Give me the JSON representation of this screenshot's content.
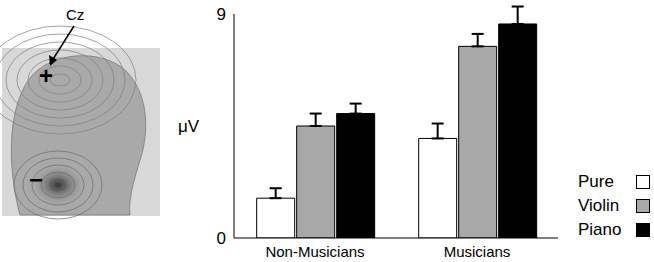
{
  "chart_data": {
    "type": "bar",
    "y_label": "μV",
    "categories": [
      "Non-Musicians",
      "Musicians"
    ],
    "ylim": [
      0,
      9
    ],
    "yticks": [
      0,
      9
    ],
    "legend": "lower right",
    "annotations": {
      "electrode": "Cz",
      "positive": "+",
      "negative": "−"
    },
    "series": [
      {
        "name": "Pure",
        "color": "#ffffff",
        "values": [
          1.6,
          4.0
        ],
        "errors": [
          0.4,
          0.6
        ]
      },
      {
        "name": "Violin",
        "color": "#a8a8a8",
        "values": [
          4.5,
          7.7
        ],
        "errors": [
          0.5,
          0.5
        ]
      },
      {
        "name": "Piano",
        "color": "#000000",
        "values": [
          5.0,
          8.6
        ],
        "errors": [
          0.4,
          0.7
        ]
      }
    ]
  }
}
